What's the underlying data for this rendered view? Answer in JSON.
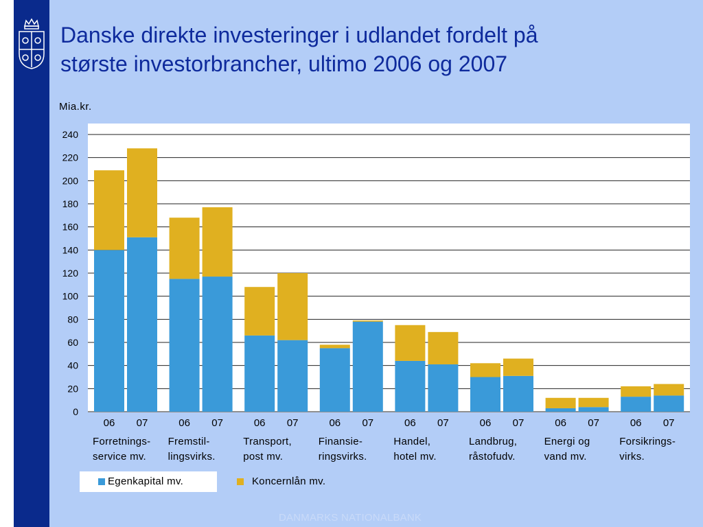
{
  "title_line1": "Danske direkte investeringer i udlandet fordelt på",
  "title_line2": "største investorbrancher, ultimo 2006 og 2007",
  "footer": "DANMARKS NATIONALBANK",
  "colors": {
    "egenkapital": "#3a9ad9",
    "koncernlaan": "#e0b020",
    "title": "#0e2a9c",
    "background": "#b3cdf7",
    "sidebar": "#0a2a8c"
  },
  "icons": [
    "royal-crest-icon"
  ],
  "chart_data": {
    "type": "bar",
    "stacked": true,
    "ylabel": "Mia.kr.",
    "ylim": [
      0,
      240
    ],
    "yticks": [
      0,
      20,
      40,
      60,
      80,
      100,
      120,
      140,
      160,
      180,
      200,
      220,
      240
    ],
    "grid": true,
    "groups": [
      {
        "label_lines": [
          "Forretnings-",
          "service mv."
        ],
        "years": [
          "06",
          "07"
        ],
        "egenkapital": [
          140,
          151
        ],
        "koncernlaan": [
          69,
          77
        ]
      },
      {
        "label_lines": [
          "Fremstil-",
          "lingsvirks."
        ],
        "years": [
          "06",
          "07"
        ],
        "egenkapital": [
          115,
          117
        ],
        "koncernlaan": [
          53,
          60
        ]
      },
      {
        "label_lines": [
          "Transport,",
          "post mv."
        ],
        "years": [
          "06",
          "07"
        ],
        "egenkapital": [
          66,
          62
        ],
        "koncernlaan": [
          42,
          58
        ]
      },
      {
        "label_lines": [
          "Finansie-",
          "ringsvirks."
        ],
        "years": [
          "06",
          "07"
        ],
        "egenkapital": [
          55,
          78
        ],
        "koncernlaan": [
          3,
          1
        ]
      },
      {
        "label_lines": [
          "Handel,",
          "hotel mv."
        ],
        "years": [
          "06",
          "07"
        ],
        "egenkapital": [
          44,
          41
        ],
        "koncernlaan": [
          31,
          28
        ]
      },
      {
        "label_lines": [
          "Landbrug,",
          "råstofudv."
        ],
        "years": [
          "06",
          "07"
        ],
        "egenkapital": [
          30,
          31
        ],
        "koncernlaan": [
          12,
          15
        ]
      },
      {
        "label_lines": [
          "Energi og",
          "vand mv."
        ],
        "years": [
          "06",
          "07"
        ],
        "egenkapital": [
          3,
          4
        ],
        "koncernlaan": [
          9,
          8
        ]
      },
      {
        "label_lines": [
          "Forsikrings-",
          "virks."
        ],
        "years": [
          "06",
          "07"
        ],
        "egenkapital": [
          13,
          14
        ],
        "koncernlaan": [
          9,
          10
        ]
      }
    ],
    "series": [
      {
        "name": "Egenkapital mv.",
        "key": "egenkapital"
      },
      {
        "name": "Koncernlån mv.",
        "key": "koncernlaan"
      }
    ],
    "legend_placement": "bottom"
  }
}
